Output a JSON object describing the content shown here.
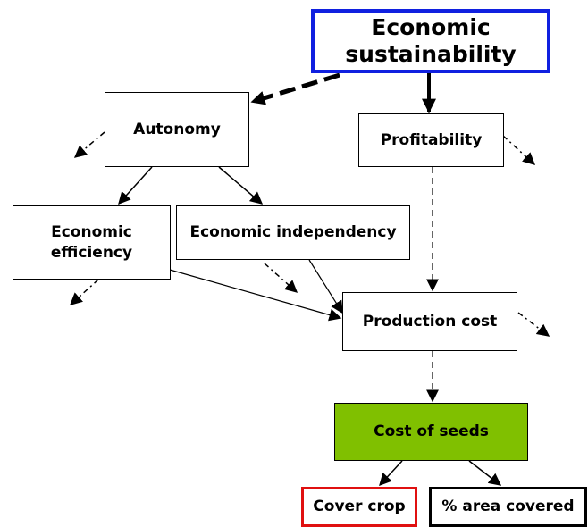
{
  "nodes": [
    {
      "label": "Economic sustainability"
    },
    {
      "label": "Autonomy"
    },
    {
      "label": "Profitability"
    },
    {
      "label": "Economic efficiency"
    },
    {
      "label": "Economic independency"
    },
    {
      "label": "Production cost"
    },
    {
      "label": "Cost of seeds"
    },
    {
      "label": "Cover crop"
    },
    {
      "label": "% area covered"
    }
  ]
}
